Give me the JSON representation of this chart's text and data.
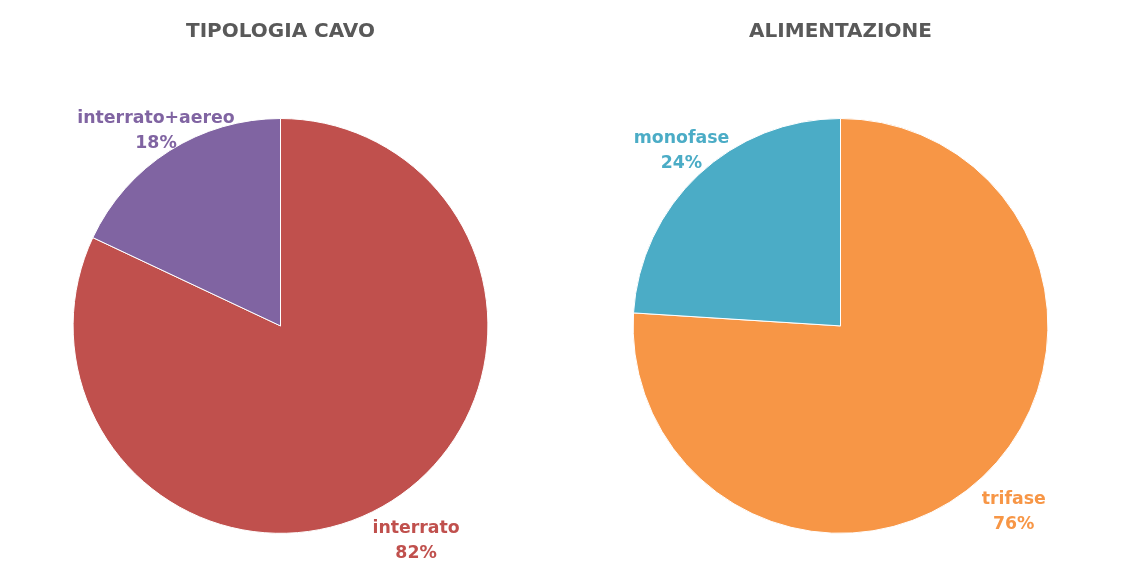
{
  "chart_data": [
    {
      "type": "pie",
      "title": "TIPOLOGIA CAVO",
      "categories": [
        "interrato",
        "interrato+aereo"
      ],
      "values": [
        82,
        18
      ],
      "colors": [
        "#c0504d",
        "#8064a2"
      ],
      "value_labels": [
        "82%",
        "18%"
      ]
    },
    {
      "type": "pie",
      "title": "ALIMENTAZIONE",
      "categories": [
        "trifase",
        "monofase"
      ],
      "values": [
        76,
        24
      ],
      "colors": [
        "#f79646",
        "#4bacc6"
      ],
      "value_labels": [
        "76%",
        "24%"
      ]
    }
  ]
}
